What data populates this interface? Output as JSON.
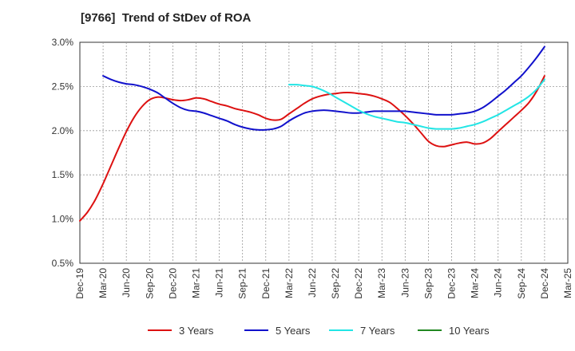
{
  "chart_data": {
    "type": "line",
    "title": "[9766]  Trend of StDev of ROA",
    "xlabel": "",
    "ylabel": "",
    "x_ticks": [
      "Dec-19",
      "Mar-20",
      "Jun-20",
      "Sep-20",
      "Dec-20",
      "Mar-21",
      "Jun-21",
      "Sep-21",
      "Dec-21",
      "Mar-22",
      "Jun-22",
      "Sep-22",
      "Dec-22",
      "Mar-23",
      "Jun-23",
      "Sep-23",
      "Dec-23",
      "Mar-24",
      "Jun-24",
      "Sep-24",
      "Dec-24",
      "Mar-25"
    ],
    "y_ticks": [
      "0.5%",
      "1.0%",
      "1.5%",
      "2.0%",
      "2.5%",
      "3.0%"
    ],
    "ylim": [
      0.5,
      3.0
    ],
    "grid": true,
    "legend_position": "bottom",
    "series": [
      {
        "name": "3 Years",
        "color": "#dd1111",
        "points": [
          [
            "Dec-19",
            0.98
          ],
          [
            "Jan-20",
            1.08
          ],
          [
            "Feb-20",
            1.22
          ],
          [
            "Mar-20",
            1.4
          ],
          [
            "Apr-20",
            1.6
          ],
          [
            "May-20",
            1.8
          ],
          [
            "Jun-20",
            1.99
          ],
          [
            "Jul-20",
            2.15
          ],
          [
            "Aug-20",
            2.27
          ],
          [
            "Sep-20",
            2.35
          ],
          [
            "Oct-20",
            2.38
          ],
          [
            "Nov-20",
            2.37
          ],
          [
            "Dec-20",
            2.35
          ],
          [
            "Jan-21",
            2.34
          ],
          [
            "Feb-21",
            2.35
          ],
          [
            "Mar-21",
            2.37
          ],
          [
            "Apr-21",
            2.36
          ],
          [
            "May-21",
            2.33
          ],
          [
            "Jun-21",
            2.3
          ],
          [
            "Jul-21",
            2.28
          ],
          [
            "Aug-21",
            2.25
          ],
          [
            "Sep-21",
            2.23
          ],
          [
            "Oct-21",
            2.21
          ],
          [
            "Nov-21",
            2.18
          ],
          [
            "Dec-21",
            2.14
          ],
          [
            "Jan-22",
            2.12
          ],
          [
            "Feb-22",
            2.13
          ],
          [
            "Mar-22",
            2.19
          ],
          [
            "Apr-22",
            2.25
          ],
          [
            "May-22",
            2.31
          ],
          [
            "Jun-22",
            2.36
          ],
          [
            "Jul-22",
            2.39
          ],
          [
            "Aug-22",
            2.41
          ],
          [
            "Sep-22",
            2.42
          ],
          [
            "Oct-22",
            2.43
          ],
          [
            "Nov-22",
            2.43
          ],
          [
            "Dec-22",
            2.42
          ],
          [
            "Jan-23",
            2.41
          ],
          [
            "Feb-23",
            2.39
          ],
          [
            "Mar-23",
            2.36
          ],
          [
            "Apr-23",
            2.32
          ],
          [
            "May-23",
            2.25
          ],
          [
            "Jun-23",
            2.17
          ],
          [
            "Jul-23",
            2.08
          ],
          [
            "Aug-23",
            1.98
          ],
          [
            "Sep-23",
            1.88
          ],
          [
            "Oct-23",
            1.83
          ],
          [
            "Nov-23",
            1.82
          ],
          [
            "Dec-23",
            1.84
          ],
          [
            "Jan-24",
            1.86
          ],
          [
            "Feb-24",
            1.87
          ],
          [
            "Mar-24",
            1.85
          ],
          [
            "Apr-24",
            1.86
          ],
          [
            "May-24",
            1.91
          ],
          [
            "Jun-24",
            1.99
          ],
          [
            "Jul-24",
            2.07
          ],
          [
            "Aug-24",
            2.15
          ],
          [
            "Sep-24",
            2.23
          ],
          [
            "Oct-24",
            2.32
          ],
          [
            "Nov-24",
            2.45
          ],
          [
            "Dec-24",
            2.62
          ]
        ]
      },
      {
        "name": "5 Years",
        "color": "#1111cc",
        "points": [
          [
            "Mar-20",
            2.62
          ],
          [
            "Apr-20",
            2.58
          ],
          [
            "May-20",
            2.55
          ],
          [
            "Jun-20",
            2.53
          ],
          [
            "Jul-20",
            2.52
          ],
          [
            "Aug-20",
            2.5
          ],
          [
            "Sep-20",
            2.47
          ],
          [
            "Oct-20",
            2.43
          ],
          [
            "Nov-20",
            2.37
          ],
          [
            "Dec-20",
            2.31
          ],
          [
            "Jan-21",
            2.26
          ],
          [
            "Feb-21",
            2.23
          ],
          [
            "Mar-21",
            2.22
          ],
          [
            "Apr-21",
            2.2
          ],
          [
            "May-21",
            2.17
          ],
          [
            "Jun-21",
            2.14
          ],
          [
            "Jul-21",
            2.11
          ],
          [
            "Aug-21",
            2.07
          ],
          [
            "Sep-21",
            2.04
          ],
          [
            "Oct-21",
            2.02
          ],
          [
            "Nov-21",
            2.01
          ],
          [
            "Dec-21",
            2.01
          ],
          [
            "Jan-22",
            2.02
          ],
          [
            "Feb-22",
            2.05
          ],
          [
            "Mar-22",
            2.11
          ],
          [
            "Apr-22",
            2.16
          ],
          [
            "May-22",
            2.2
          ],
          [
            "Jun-22",
            2.22
          ],
          [
            "Jul-22",
            2.23
          ],
          [
            "Aug-22",
            2.23
          ],
          [
            "Sep-22",
            2.22
          ],
          [
            "Oct-22",
            2.21
          ],
          [
            "Nov-22",
            2.2
          ],
          [
            "Dec-22",
            2.2
          ],
          [
            "Jan-23",
            2.21
          ],
          [
            "Feb-23",
            2.22
          ],
          [
            "Mar-23",
            2.22
          ],
          [
            "Apr-23",
            2.22
          ],
          [
            "May-23",
            2.22
          ],
          [
            "Jun-23",
            2.22
          ],
          [
            "Jul-23",
            2.21
          ],
          [
            "Aug-23",
            2.2
          ],
          [
            "Sep-23",
            2.19
          ],
          [
            "Oct-23",
            2.18
          ],
          [
            "Nov-23",
            2.18
          ],
          [
            "Dec-23",
            2.18
          ],
          [
            "Jan-24",
            2.19
          ],
          [
            "Feb-24",
            2.2
          ],
          [
            "Mar-24",
            2.22
          ],
          [
            "Apr-24",
            2.26
          ],
          [
            "May-24",
            2.32
          ],
          [
            "Jun-24",
            2.39
          ],
          [
            "Jul-24",
            2.46
          ],
          [
            "Aug-24",
            2.54
          ],
          [
            "Sep-24",
            2.62
          ],
          [
            "Oct-24",
            2.72
          ],
          [
            "Nov-24",
            2.83
          ],
          [
            "Dec-24",
            2.95
          ]
        ]
      },
      {
        "name": "7 Years",
        "color": "#22e5e5",
        "points": [
          [
            "Mar-22",
            2.52
          ],
          [
            "Apr-22",
            2.52
          ],
          [
            "May-22",
            2.51
          ],
          [
            "Jun-22",
            2.5
          ],
          [
            "Jul-22",
            2.47
          ],
          [
            "Aug-22",
            2.43
          ],
          [
            "Sep-22",
            2.38
          ],
          [
            "Oct-22",
            2.33
          ],
          [
            "Nov-22",
            2.28
          ],
          [
            "Dec-22",
            2.23
          ],
          [
            "Jan-23",
            2.19
          ],
          [
            "Feb-23",
            2.16
          ],
          [
            "Mar-23",
            2.14
          ],
          [
            "Apr-23",
            2.12
          ],
          [
            "May-23",
            2.1
          ],
          [
            "Jun-23",
            2.09
          ],
          [
            "Jul-23",
            2.07
          ],
          [
            "Aug-23",
            2.05
          ],
          [
            "Sep-23",
            2.03
          ],
          [
            "Oct-23",
            2.02
          ],
          [
            "Nov-23",
            2.02
          ],
          [
            "Dec-23",
            2.02
          ],
          [
            "Jan-24",
            2.03
          ],
          [
            "Feb-24",
            2.05
          ],
          [
            "Mar-24",
            2.07
          ],
          [
            "Apr-24",
            2.1
          ],
          [
            "May-24",
            2.14
          ],
          [
            "Jun-24",
            2.18
          ],
          [
            "Jul-24",
            2.23
          ],
          [
            "Aug-24",
            2.28
          ],
          [
            "Sep-24",
            2.33
          ],
          [
            "Oct-24",
            2.39
          ],
          [
            "Nov-24",
            2.47
          ],
          [
            "Dec-24",
            2.58
          ]
        ]
      },
      {
        "name": "10 Years",
        "color": "#228822",
        "points": []
      }
    ]
  }
}
